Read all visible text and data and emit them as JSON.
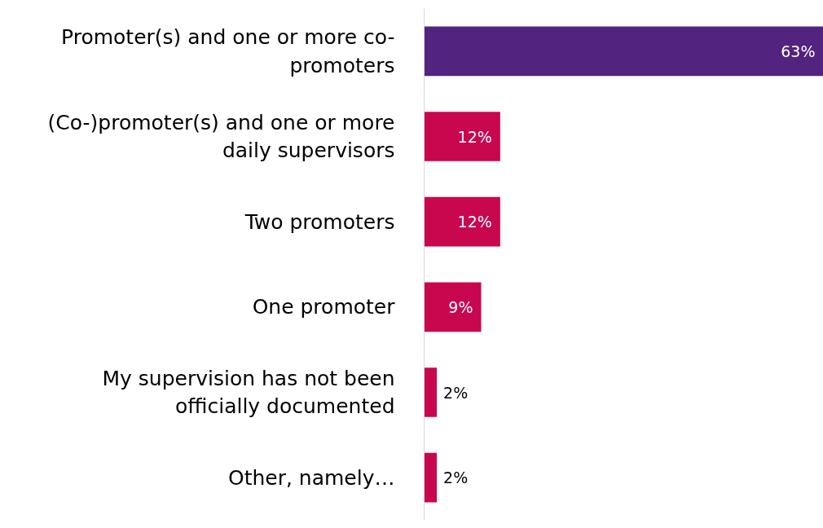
{
  "chart_data": {
    "type": "bar",
    "orientation": "horizontal",
    "categories": [
      "Promoter(s) and one or more co-promoters",
      "(Co-)promoter(s) and one or more daily supervisors",
      "Two promoters",
      "One promoter",
      "My supervision has not been officially documented",
      "Other, namely…"
    ],
    "values": [
      63,
      12,
      12,
      9,
      2,
      2
    ],
    "colors": [
      "#52237f",
      "#c8074f",
      "#c8074f",
      "#c8074f",
      "#c8074f",
      "#c8074f"
    ],
    "value_labels": [
      "63%",
      "12%",
      "12%",
      "9%",
      "2%",
      "2%"
    ],
    "grid": false
  }
}
